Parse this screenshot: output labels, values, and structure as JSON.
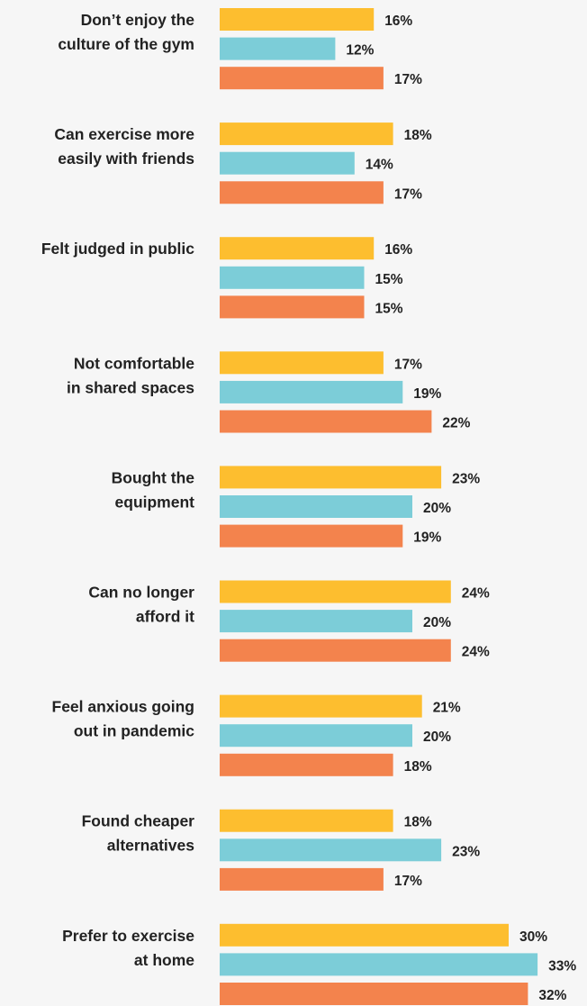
{
  "chart_data": {
    "type": "bar",
    "orientation": "horizontal",
    "categories": [
      [
        "Don’t enjoy the",
        "culture of the gym"
      ],
      [
        "Can exercise more",
        "easily with friends"
      ],
      [
        "Felt judged in public"
      ],
      [
        "Not comfortable",
        "in shared spaces"
      ],
      [
        "Bought the",
        "equipment"
      ],
      [
        "Can no longer",
        "afford it"
      ],
      [
        "Feel anxious going",
        "out in pandemic"
      ],
      [
        "Found cheaper",
        "alternatives"
      ],
      [
        "Prefer to exercise",
        "at home"
      ]
    ],
    "series": [
      {
        "color": "#fdbe2f",
        "values": [
          16,
          18,
          16,
          17,
          23,
          24,
          21,
          18,
          30
        ],
        "labels": [
          "16%",
          "18%",
          "16%",
          "17%",
          "23%",
          "24%",
          "21%",
          "18%",
          "30%"
        ]
      },
      {
        "color": "#7ccdd8",
        "values": [
          12,
          14,
          15,
          19,
          20,
          20,
          20,
          23,
          33
        ],
        "labels": [
          "12%",
          "14%",
          "15%",
          "19%",
          "20%",
          "20%",
          "20%",
          "23%",
          "33%"
        ]
      },
      {
        "color": "#f3834d",
        "values": [
          17,
          17,
          15,
          22,
          19,
          24,
          18,
          17,
          32
        ],
        "labels": [
          "17%",
          "17%",
          "15%",
          "22%",
          "19%",
          "24%",
          "18%",
          "17%",
          "32%"
        ]
      }
    ],
    "grid": false,
    "legend": "none"
  }
}
